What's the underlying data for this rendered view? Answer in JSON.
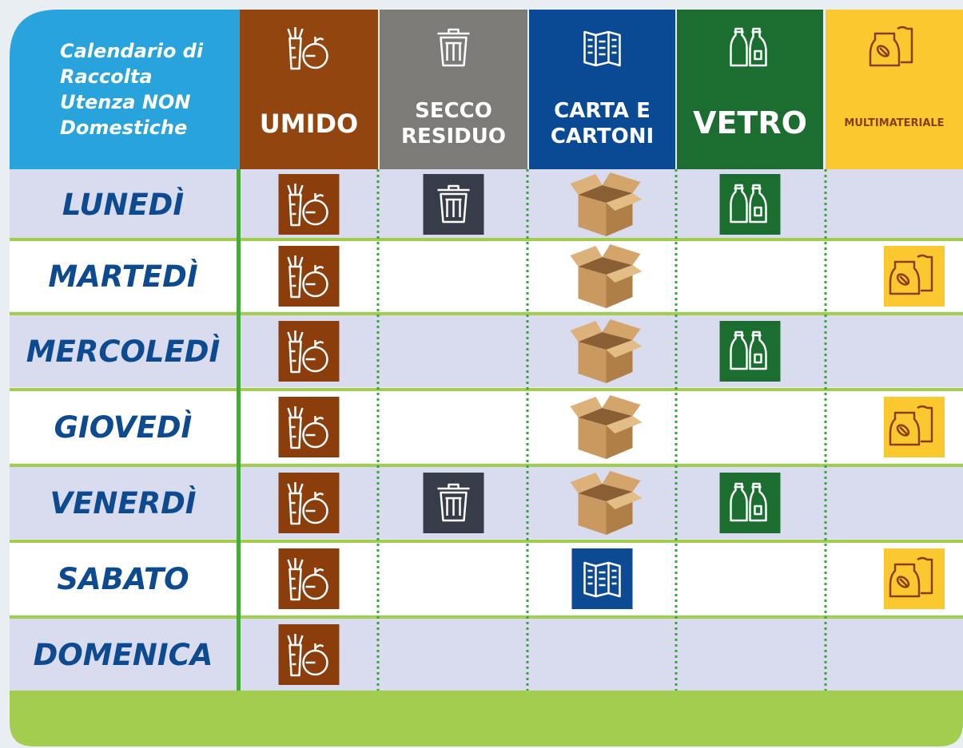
{
  "header": {
    "title": "Calendario di Raccolta Utenza NON Domestiche",
    "columns": [
      "UMIDO",
      "SECCO RESIDUO",
      "CARTA E CARTONI",
      "VETRO",
      "MULTIMATERIALE"
    ]
  },
  "table": {
    "rows": [
      "LUNEDÌ",
      "MARTEDÌ",
      "MERCOLEDÌ",
      "GIOVEDÌ",
      "VENERDÌ",
      "SABATO",
      "DOMENICA"
    ]
  }
}
